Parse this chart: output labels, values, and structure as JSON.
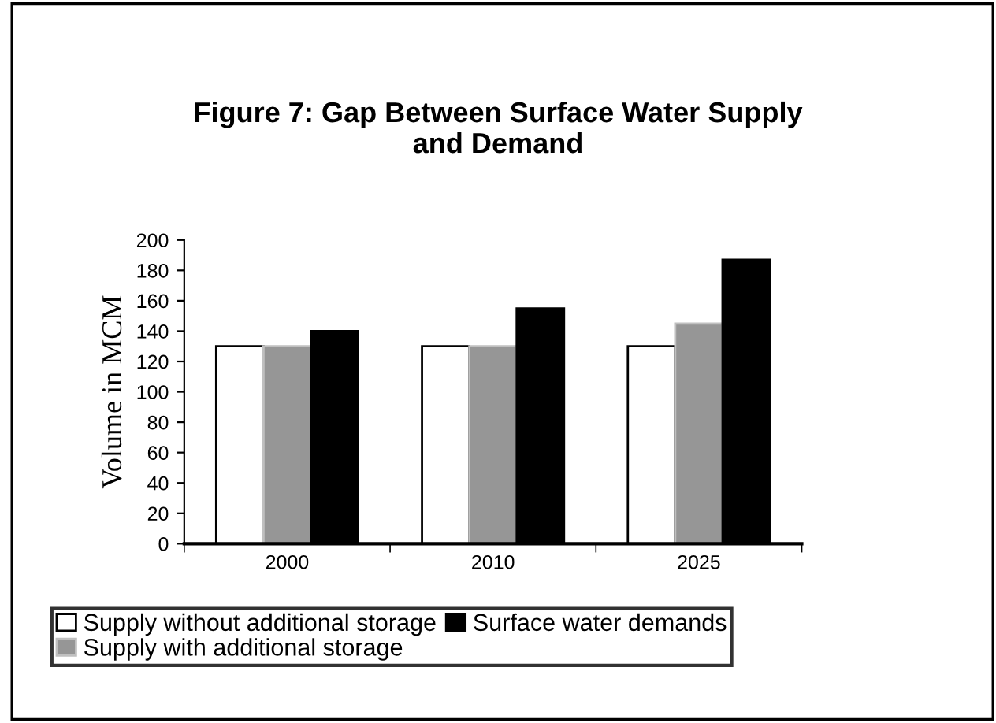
{
  "chart_data": {
    "type": "bar",
    "title": "Figure 7: Gap Between Surface Water Supply\nand Demand",
    "ylabel": "Volume in MCM",
    "categories": [
      "2000",
      "2010",
      "2025"
    ],
    "series": [
      {
        "name": "Supply without additional storage",
        "color": "#ffffff",
        "values": [
          130,
          130,
          130
        ]
      },
      {
        "name": "Supply with additional storage",
        "color": "#969696",
        "values": [
          130,
          130,
          145
        ]
      },
      {
        "name": "Surface water demands",
        "color": "#000000",
        "values": [
          140,
          155,
          187
        ]
      }
    ],
    "ylim": [
      0,
      200
    ],
    "yticks": [
      0,
      20,
      40,
      60,
      80,
      100,
      120,
      140,
      160,
      180,
      200
    ],
    "grid": false,
    "legend": "bottom"
  }
}
